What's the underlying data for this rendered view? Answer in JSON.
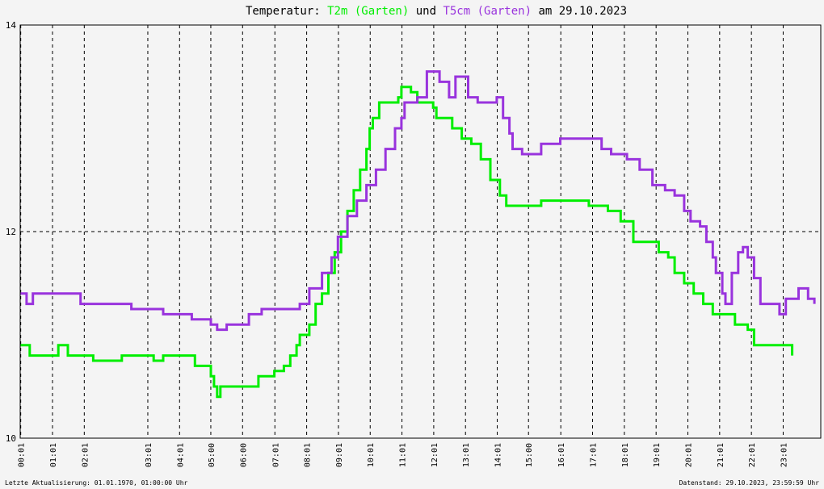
{
  "chart_data": {
    "type": "line",
    "title": {
      "prefix": "Temperatur: ",
      "series1": "T2m (Garten)",
      "middle": " und ",
      "series2": "T5cm (Garten)",
      "suffix": " am 29.10.2023"
    },
    "ylim": [
      10,
      14
    ],
    "y_ticks": [
      "10",
      "12",
      "14"
    ],
    "xlim": [
      0,
      24
    ],
    "x_ticks": [
      {
        "label": "00:01",
        "value": 0.017
      },
      {
        "label": "01:01",
        "value": 1.017
      },
      {
        "label": "02:01",
        "value": 2.017
      },
      {
        "label": "03:01",
        "value": 4.017
      },
      {
        "label": "04:01",
        "value": 5.017
      },
      {
        "label": "05:00",
        "value": 6.0
      },
      {
        "label": "06:00",
        "value": 7.0
      },
      {
        "label": "07:01",
        "value": 8.017
      },
      {
        "label": "08:01",
        "value": 9.017
      },
      {
        "label": "09:01",
        "value": 10.017
      },
      {
        "label": "10:01",
        "value": 11.017
      },
      {
        "label": "11:01",
        "value": 12.017
      },
      {
        "label": "12:01",
        "value": 13.017
      },
      {
        "label": "13:01",
        "value": 14.017
      },
      {
        "label": "14:01",
        "value": 15.017
      },
      {
        "label": "15:00",
        "value": 16.0
      },
      {
        "label": "16:01",
        "value": 17.017
      },
      {
        "label": "17:01",
        "value": 18.017
      },
      {
        "label": "18:01",
        "value": 19.017
      },
      {
        "label": "19:01",
        "value": 20.017
      },
      {
        "label": "20:01",
        "value": 21.017
      },
      {
        "label": "21:01",
        "value": 22.017
      },
      {
        "label": "22:01",
        "value": 23.017
      },
      {
        "label": "23:01",
        "value": 24.017
      }
    ],
    "grid": true,
    "series": [
      {
        "name": "T2m (Garten)",
        "color": "#00ee00",
        "points": [
          [
            0.0,
            10.9
          ],
          [
            0.3,
            10.8
          ],
          [
            1.2,
            10.9
          ],
          [
            1.5,
            10.8
          ],
          [
            2.2,
            10.8
          ],
          [
            2.3,
            10.75
          ],
          [
            3.2,
            10.8
          ],
          [
            4.1,
            10.8
          ],
          [
            4.2,
            10.75
          ],
          [
            4.5,
            10.8
          ],
          [
            5.4,
            10.8
          ],
          [
            5.5,
            10.7
          ],
          [
            6.0,
            10.6
          ],
          [
            6.1,
            10.5
          ],
          [
            6.2,
            10.4
          ],
          [
            6.3,
            10.5
          ],
          [
            7.4,
            10.5
          ],
          [
            7.5,
            10.6
          ],
          [
            7.8,
            10.6
          ],
          [
            8.0,
            10.65
          ],
          [
            8.3,
            10.7
          ],
          [
            8.5,
            10.8
          ],
          [
            8.7,
            10.9
          ],
          [
            8.8,
            11.0
          ],
          [
            9.1,
            11.1
          ],
          [
            9.3,
            11.3
          ],
          [
            9.5,
            11.4
          ],
          [
            9.7,
            11.6
          ],
          [
            9.9,
            11.8
          ],
          [
            10.1,
            12.0
          ],
          [
            10.3,
            12.2
          ],
          [
            10.5,
            12.4
          ],
          [
            10.7,
            12.6
          ],
          [
            10.9,
            12.8
          ],
          [
            11.0,
            13.0
          ],
          [
            11.1,
            13.1
          ],
          [
            11.3,
            13.25
          ],
          [
            11.9,
            13.3
          ],
          [
            12.0,
            13.4
          ],
          [
            12.3,
            13.35
          ],
          [
            12.5,
            13.25
          ],
          [
            13.0,
            13.2
          ],
          [
            13.1,
            13.1
          ],
          [
            13.6,
            13.0
          ],
          [
            13.9,
            12.9
          ],
          [
            14.2,
            12.85
          ],
          [
            14.5,
            12.7
          ],
          [
            14.8,
            12.5
          ],
          [
            15.1,
            12.35
          ],
          [
            15.3,
            12.25
          ],
          [
            16.2,
            12.25
          ],
          [
            16.4,
            12.3
          ],
          [
            17.6,
            12.3
          ],
          [
            17.9,
            12.25
          ],
          [
            18.5,
            12.2
          ],
          [
            18.9,
            12.1
          ],
          [
            19.3,
            11.9
          ],
          [
            19.8,
            11.9
          ],
          [
            20.1,
            11.8
          ],
          [
            20.4,
            11.75
          ],
          [
            20.6,
            11.6
          ],
          [
            20.9,
            11.5
          ],
          [
            21.2,
            11.4
          ],
          [
            21.5,
            11.3
          ],
          [
            21.8,
            11.2
          ],
          [
            22.2,
            11.2
          ],
          [
            22.5,
            11.1
          ],
          [
            22.9,
            11.05
          ],
          [
            23.1,
            10.9
          ],
          [
            24.0,
            10.9
          ],
          [
            24.3,
            10.8
          ]
        ]
      },
      {
        "name": "T5cm (Garten)",
        "color": "#9933dd",
        "points": [
          [
            0.0,
            11.4
          ],
          [
            0.2,
            11.3
          ],
          [
            0.4,
            11.4
          ],
          [
            1.7,
            11.4
          ],
          [
            1.9,
            11.3
          ],
          [
            3.0,
            11.3
          ],
          [
            3.5,
            11.25
          ],
          [
            4.2,
            11.25
          ],
          [
            4.5,
            11.2
          ],
          [
            5.2,
            11.2
          ],
          [
            5.4,
            11.15
          ],
          [
            6.0,
            11.1
          ],
          [
            6.2,
            11.05
          ],
          [
            6.5,
            11.1
          ],
          [
            7.2,
            11.2
          ],
          [
            7.6,
            11.25
          ],
          [
            8.4,
            11.25
          ],
          [
            8.8,
            11.3
          ],
          [
            9.1,
            11.45
          ],
          [
            9.5,
            11.6
          ],
          [
            9.8,
            11.75
          ],
          [
            10.0,
            11.95
          ],
          [
            10.3,
            12.15
          ],
          [
            10.6,
            12.3
          ],
          [
            10.9,
            12.45
          ],
          [
            11.2,
            12.6
          ],
          [
            11.5,
            12.8
          ],
          [
            11.8,
            13.0
          ],
          [
            12.0,
            13.1
          ],
          [
            12.1,
            13.25
          ],
          [
            12.5,
            13.3
          ],
          [
            12.8,
            13.55
          ],
          [
            13.2,
            13.45
          ],
          [
            13.5,
            13.3
          ],
          [
            13.7,
            13.5
          ],
          [
            14.1,
            13.3
          ],
          [
            14.4,
            13.25
          ],
          [
            15.0,
            13.3
          ],
          [
            15.2,
            13.1
          ],
          [
            15.4,
            12.95
          ],
          [
            15.5,
            12.8
          ],
          [
            15.8,
            12.75
          ],
          [
            16.2,
            12.75
          ],
          [
            16.4,
            12.85
          ],
          [
            17.0,
            12.9
          ],
          [
            18.0,
            12.9
          ],
          [
            18.3,
            12.8
          ],
          [
            18.6,
            12.75
          ],
          [
            19.1,
            12.7
          ],
          [
            19.5,
            12.6
          ],
          [
            19.9,
            12.45
          ],
          [
            20.3,
            12.4
          ],
          [
            20.6,
            12.35
          ],
          [
            20.9,
            12.2
          ],
          [
            21.1,
            12.1
          ],
          [
            21.4,
            12.05
          ],
          [
            21.6,
            11.9
          ],
          [
            21.8,
            11.75
          ],
          [
            21.9,
            11.6
          ],
          [
            22.1,
            11.4
          ],
          [
            22.2,
            11.3
          ],
          [
            22.4,
            11.6
          ],
          [
            22.6,
            11.8
          ],
          [
            22.75,
            11.85
          ],
          [
            22.9,
            11.75
          ],
          [
            23.1,
            11.55
          ],
          [
            23.3,
            11.3
          ],
          [
            23.6,
            11.3
          ],
          [
            23.9,
            11.2
          ],
          [
            24.1,
            11.35
          ],
          [
            24.5,
            11.45
          ],
          [
            24.8,
            11.35
          ],
          [
            25.0,
            11.3
          ]
        ]
      }
    ]
  },
  "footer": {
    "left": "Letzte Aktualisierung: 01.01.1970, 01:00:00 Uhr",
    "right": "Datenstand: 29.10.2023, 23:59:59 Uhr"
  }
}
